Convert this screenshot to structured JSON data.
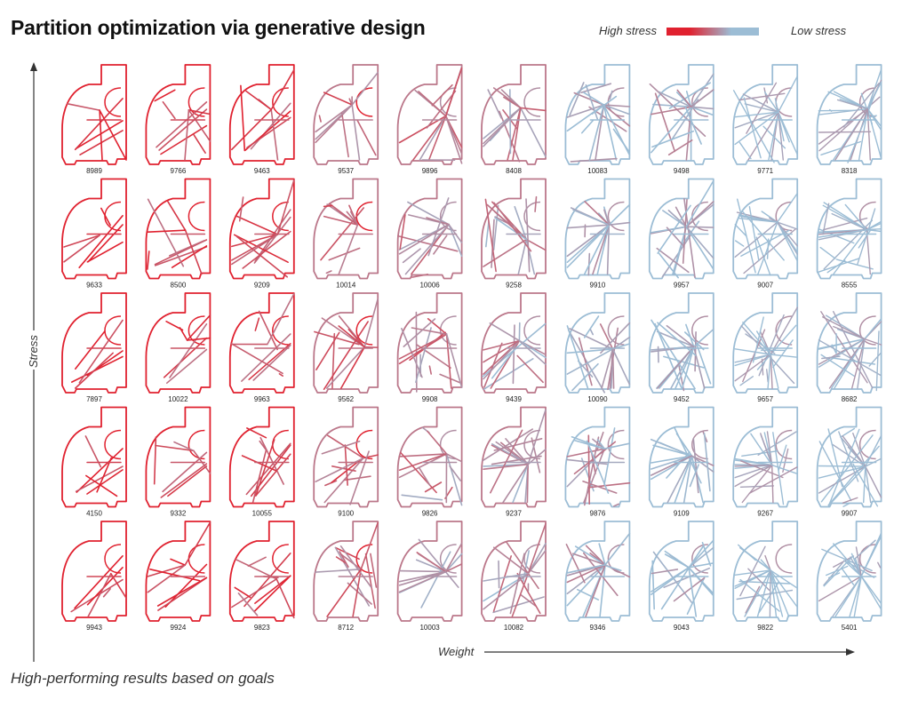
{
  "title": "Partition optimization via generative design",
  "legend": {
    "high_label": "High stress",
    "low_label": "Low stress",
    "high_color": "#e0212f",
    "low_color": "#9cbdd5"
  },
  "axes": {
    "y_label": "Stress",
    "x_label": "Weight"
  },
  "footer": "High-performing results based on goals",
  "grid": {
    "rows": 5,
    "cols": 10,
    "ids": [
      [
        "8989",
        "9766",
        "9463",
        "9537",
        "9896",
        "8408",
        "10083",
        "9498",
        "9771",
        "8318"
      ],
      [
        "9633",
        "8500",
        "9209",
        "10014",
        "10006",
        "9258",
        "9910",
        "9957",
        "9007",
        "8555"
      ],
      [
        "7897",
        "10022",
        "9963",
        "9562",
        "9908",
        "9439",
        "10090",
        "9452",
        "9657",
        "8682"
      ],
      [
        "4150",
        "9332",
        "10055",
        "9100",
        "9826",
        "9237",
        "9876",
        "9109",
        "9267",
        "9907"
      ],
      [
        "9943",
        "9924",
        "9823",
        "8712",
        "10003",
        "10082",
        "9346",
        "9043",
        "9822",
        "5401"
      ]
    ]
  }
}
